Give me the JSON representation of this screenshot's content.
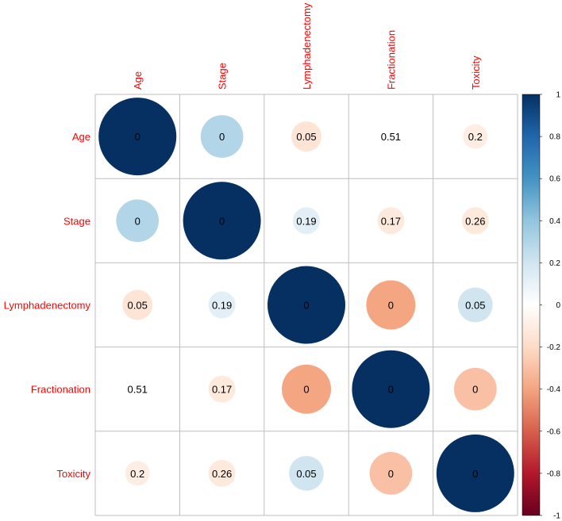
{
  "chart_data": {
    "type": "heatmap",
    "style": "correlation circles with p-value labels",
    "variables": [
      "Age",
      "Stage",
      "Lymphadenectomy",
      "Fractionation",
      "Toxicity"
    ],
    "correlation": [
      [
        1.0,
        0.3,
        -0.15,
        0.02,
        -0.1
      ],
      [
        0.3,
        1.0,
        0.12,
        -0.12,
        -0.12
      ],
      [
        -0.15,
        0.12,
        1.0,
        -0.4,
        0.2
      ],
      [
        0.02,
        -0.12,
        -0.4,
        1.0,
        -0.3
      ],
      [
        -0.1,
        -0.12,
        0.2,
        -0.3,
        1.0
      ]
    ],
    "p_values": [
      [
        "0",
        "0",
        "0.05",
        "0.51",
        "0.2"
      ],
      [
        "0",
        "0",
        "0.19",
        "0.17",
        "0.26"
      ],
      [
        "0.05",
        "0.19",
        "0",
        "0",
        "0.05"
      ],
      [
        "0.51",
        "0.17",
        "0",
        "0",
        "0"
      ],
      [
        "0.2",
        "0.26",
        "0.05",
        "0",
        "0"
      ]
    ],
    "colorbar": {
      "range": [
        -1,
        1
      ],
      "ticks": [
        "1",
        "0.8",
        "0.6",
        "0.4",
        "0.2",
        "0",
        "-0.2",
        "-0.4",
        "-0.6",
        "-0.8",
        "-1"
      ],
      "colors": {
        "neg_end": "#67001F",
        "neg_mid": "#D6604D",
        "neg_light": "#FDDBC7",
        "zero": "#FFFFFF",
        "pos_light": "#D1E5F0",
        "pos_mid": "#4393C3",
        "pos_end": "#053061"
      }
    },
    "label_color": "#FF0000",
    "grid_color": "#BEBEBE"
  }
}
